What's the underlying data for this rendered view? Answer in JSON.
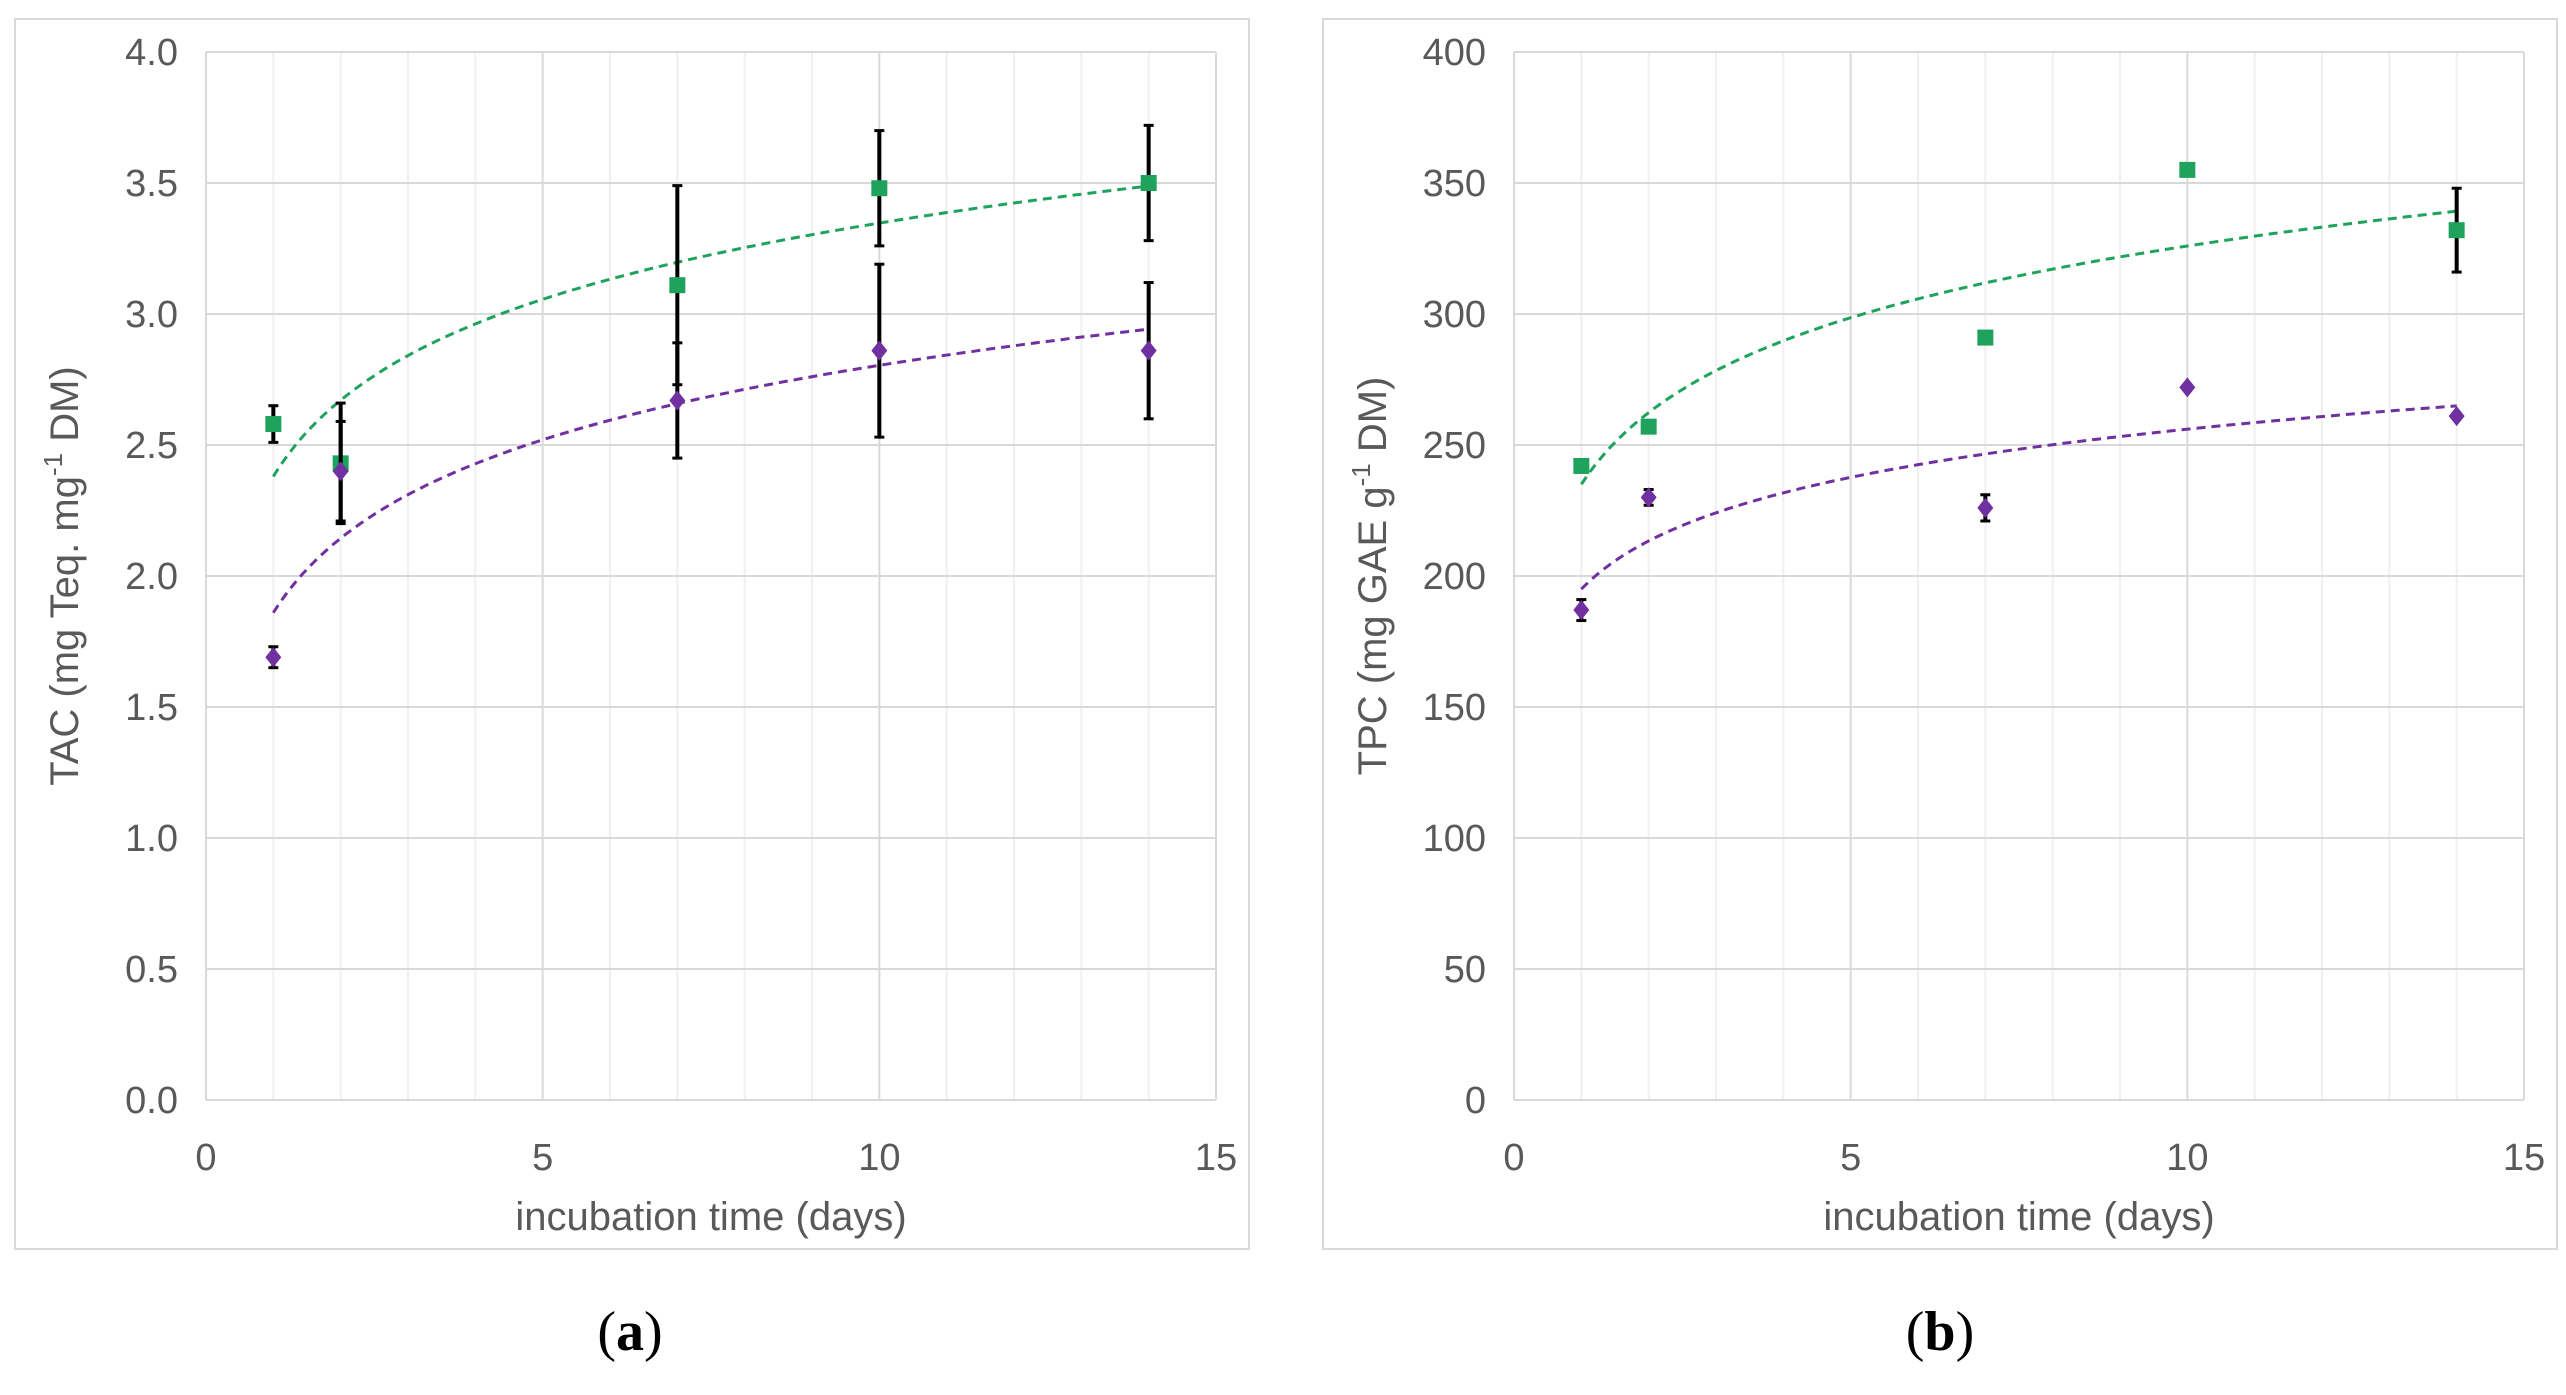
{
  "chart_data": [
    {
      "type": "scatter",
      "panel": "a",
      "xlabel": "incubation time (days)",
      "ylabel_main": "TAC (mg Teq. mg",
      "ylabel_sup": "-1",
      "ylabel_end": " DM)",
      "xlim": [
        0,
        15
      ],
      "ylim": [
        0,
        4
      ],
      "xticks": [
        0,
        5,
        10,
        15
      ],
      "xtick_labels": [
        "0",
        "5",
        "10",
        "15"
      ],
      "yticks": [
        0,
        0.5,
        1,
        1.5,
        2,
        2.5,
        3,
        3.5,
        4
      ],
      "ytick_labels": [
        "0.0",
        "0.5",
        "1.0",
        "1.5",
        "2.0",
        "2.5",
        "3.0",
        "3.5",
        "4.0"
      ],
      "grid": true,
      "series": [
        {
          "marker": "square",
          "color": "#1fa35c",
          "x": [
            1,
            2,
            7,
            10,
            14
          ],
          "y": [
            2.58,
            2.43,
            3.11,
            3.48,
            3.5
          ],
          "err": [
            0.07,
            0.23,
            0.38,
            0.22,
            0.22
          ],
          "trend": {
            "type": "log",
            "a": 2.38,
            "b": 0.42
          }
        },
        {
          "marker": "diamond",
          "color": "#7030a0",
          "x": [
            1,
            2,
            7,
            10,
            14
          ],
          "y": [
            1.69,
            2.4,
            2.67,
            2.86,
            2.86
          ],
          "err": [
            0.04,
            0.19,
            0.22,
            0.33,
            0.26
          ],
          "trend": {
            "type": "log",
            "a": 1.86,
            "b": 0.41
          }
        }
      ]
    },
    {
      "type": "scatter",
      "panel": "b",
      "xlabel": "incubation time (days)",
      "ylabel_main": "TPC (mg GAE g",
      "ylabel_sup": "-1",
      "ylabel_end": " DM)",
      "xlim": [
        0,
        15
      ],
      "ylim": [
        0,
        400
      ],
      "xticks": [
        0,
        5,
        10,
        15
      ],
      "xtick_labels": [
        "0",
        "5",
        "10",
        "15"
      ],
      "yticks": [
        0,
        50,
        100,
        150,
        200,
        250,
        300,
        350,
        400
      ],
      "ytick_labels": [
        "0",
        "50",
        "100",
        "150",
        "200",
        "250",
        "300",
        "350",
        "400"
      ],
      "grid": true,
      "series": [
        {
          "marker": "square",
          "color": "#1fa35c",
          "x": [
            1,
            2,
            7,
            10,
            14
          ],
          "y": [
            242,
            257,
            291,
            355,
            332
          ],
          "err": [
            0,
            0,
            0,
            0,
            16
          ],
          "trend": {
            "type": "log",
            "a": 235,
            "b": 39.5
          }
        },
        {
          "marker": "diamond",
          "color": "#7030a0",
          "x": [
            1,
            2,
            7,
            10,
            14
          ],
          "y": [
            187,
            230,
            226,
            272,
            261
          ],
          "err": [
            4,
            3,
            5,
            0,
            0
          ],
          "trend": {
            "type": "log",
            "a": 195,
            "b": 26.5
          }
        }
      ]
    }
  ],
  "captions": [
    "(a)",
    "(b)"
  ]
}
